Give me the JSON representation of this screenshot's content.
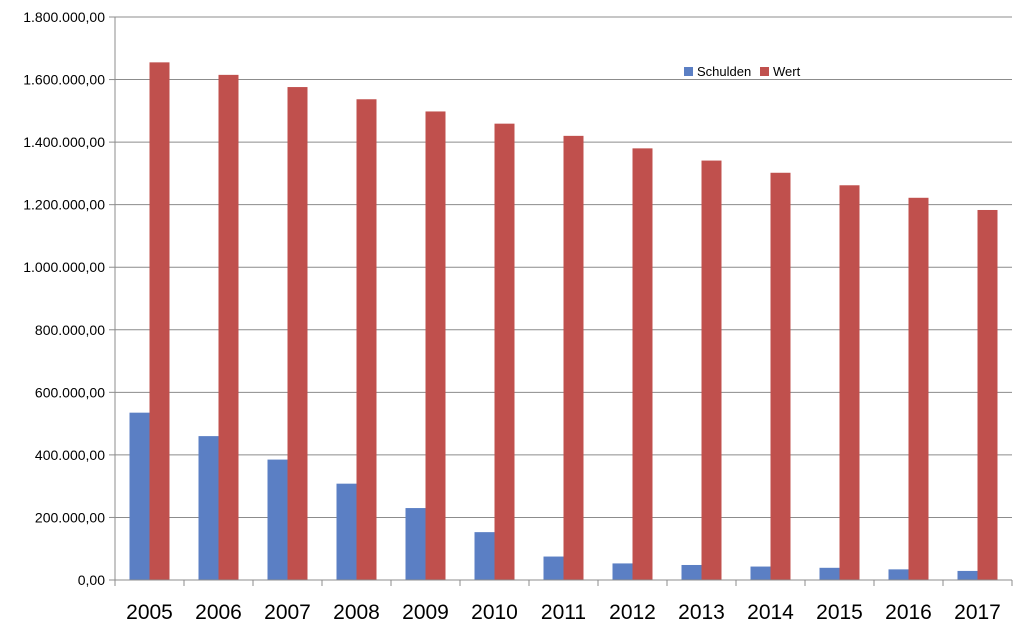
{
  "chart_data": {
    "type": "bar",
    "title": "",
    "xlabel": "",
    "ylabel": "",
    "categories": [
      "2005",
      "2006",
      "2007",
      "2008",
      "2009",
      "2010",
      "2011",
      "2012",
      "2013",
      "2014",
      "2015",
      "2016",
      "2017"
    ],
    "series": [
      {
        "name": "Schulden",
        "color": "#5b7fc4",
        "values": [
          535000,
          460000,
          385000,
          308000,
          230000,
          153000,
          75000,
          53000,
          48000,
          43000,
          39000,
          34000,
          29000
        ]
      },
      {
        "name": "Wert",
        "color": "#c0504d",
        "values": [
          1655000,
          1615000,
          1576000,
          1537000,
          1498000,
          1459000,
          1420000,
          1380000,
          1341000,
          1302000,
          1262000,
          1222000,
          1183000
        ]
      }
    ],
    "ylim": [
      0,
      1800000
    ],
    "yticks": [
      {
        "value": 0,
        "label": "0,00"
      },
      {
        "value": 200000,
        "label": "200.000,00"
      },
      {
        "value": 400000,
        "label": "400.000,00"
      },
      {
        "value": 600000,
        "label": "600.000,00"
      },
      {
        "value": 800000,
        "label": "800.000,00"
      },
      {
        "value": 1000000,
        "label": "1.000.000,00"
      },
      {
        "value": 1200000,
        "label": "1.200.000,00"
      },
      {
        "value": 1400000,
        "label": "1.400.000,00"
      },
      {
        "value": 1600000,
        "label": "1.600.000,00"
      },
      {
        "value": 1800000,
        "label": "1.800.000,00"
      }
    ],
    "grid": true,
    "legend": "top-right",
    "gridline_color": "#8c8c8c"
  }
}
